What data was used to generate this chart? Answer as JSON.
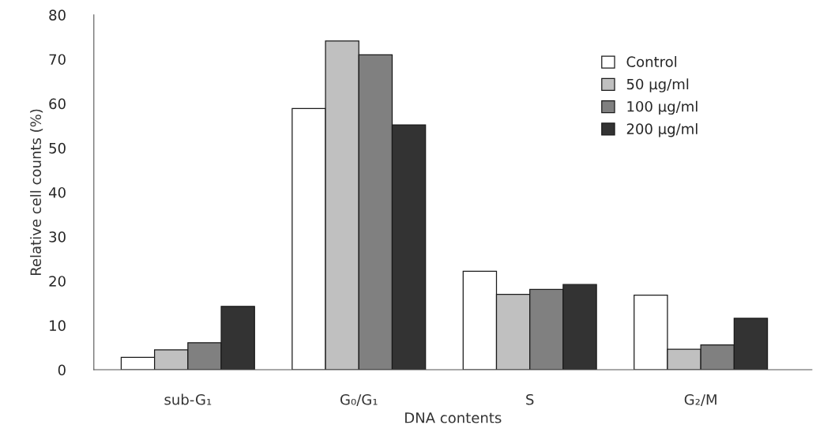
{
  "chart_data": {
    "type": "bar",
    "xlabel": "DNA contents",
    "ylabel": "Relative cell counts (%)",
    "categories": [
      "sub-G₁",
      "G₀/G₁",
      "S",
      "G₂/M"
    ],
    "series": [
      {
        "name": "Control",
        "color": "#ffffff",
        "values": [
          2.8,
          58.9,
          22.2,
          16.8
        ]
      },
      {
        "name": "50 µg/ml",
        "color": "#c0c0c0",
        "values": [
          4.5,
          74.1,
          17.0,
          4.6
        ]
      },
      {
        "name": "100 µg/ml",
        "color": "#808080",
        "values": [
          6.1,
          71.0,
          18.1,
          5.6
        ]
      },
      {
        "name": "200 µg/ml",
        "color": "#333333",
        "values": [
          14.3,
          55.2,
          19.2,
          11.6
        ]
      }
    ],
    "ylim": [
      0,
      80
    ],
    "yticks": [
      0,
      10,
      20,
      30,
      40,
      50,
      60,
      70,
      80
    ],
    "grid": false,
    "legend": "top right"
  }
}
